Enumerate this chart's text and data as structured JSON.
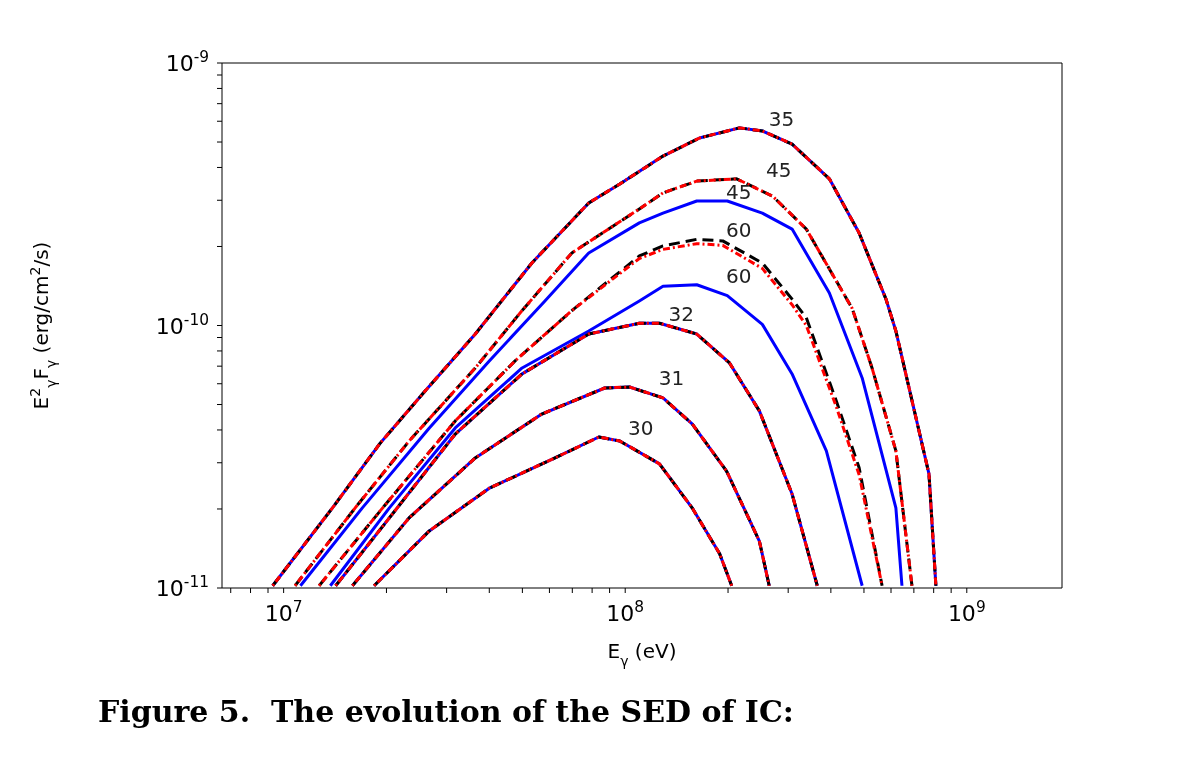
{
  "chart_data": {
    "type": "line",
    "xlabel": "E$_{γ}$ (eV)",
    "ylabel": "E$^{2}$$_{γ}$F$_{γ}$ (erg/cm$^{2}$/s)",
    "log": "xy",
    "xlim": [
      6600000.0,
      1900000000.0
    ],
    "xticks": [
      {
        "value": 7000000.0,
        "label": null
      },
      {
        "value": 8000000.0,
        "label": null
      },
      {
        "value": 9000000.0,
        "label": null
      },
      {
        "value": 10000000.0,
        "label": "10$^{7}$"
      },
      {
        "value": 20000000.0,
        "label": null
      },
      {
        "value": 30000000.0,
        "label": null
      },
      {
        "value": 40000000.0,
        "label": null
      },
      {
        "value": 50000000.0,
        "label": null
      },
      {
        "value": 60000000.0,
        "label": null
      },
      {
        "value": 70000000.0,
        "label": null
      },
      {
        "value": 80000000.0,
        "label": null
      },
      {
        "value": 90000000.0,
        "label": null
      },
      {
        "value": 100000000.0,
        "label": "10$^{8}$"
      },
      {
        "value": 200000000.0,
        "label": null
      },
      {
        "value": 300000000.0,
        "label": null
      },
      {
        "value": 400000000.0,
        "label": null
      },
      {
        "value": 500000000.0,
        "label": null
      },
      {
        "value": 600000000.0,
        "label": null
      },
      {
        "value": 700000000.0,
        "label": null
      },
      {
        "value": 800000000.0,
        "label": null
      },
      {
        "value": 900000000.0,
        "label": null
      },
      {
        "value": 1000000000.0,
        "label": "10$^{9}$"
      }
    ],
    "ylim": [
      1e-11,
      1e-09
    ],
    "yticks": [
      {
        "value": 1e-11,
        "label": "10$^{-11}$"
      },
      {
        "value": 2e-11,
        "label": null
      },
      {
        "value": 3e-11,
        "label": null
      },
      {
        "value": 4e-11,
        "label": null
      },
      {
        "value": 5e-11,
        "label": null
      },
      {
        "value": 6e-11,
        "label": null
      },
      {
        "value": 7e-11,
        "label": null
      },
      {
        "value": 8e-11,
        "label": null
      },
      {
        "value": 9e-11,
        "label": null
      },
      {
        "value": 1e-10,
        "label": "10$^{-10}$"
      },
      {
        "value": 2e-10,
        "label": null
      },
      {
        "value": 3e-10,
        "label": null
      },
      {
        "value": 4e-10,
        "label": null
      },
      {
        "value": 5e-10,
        "label": null
      },
      {
        "value": 6e-10,
        "label": null
      },
      {
        "value": 7e-10,
        "label": null
      },
      {
        "value": 8e-10,
        "label": null
      },
      {
        "value": 9e-10,
        "label": null
      },
      {
        "value": 1e-09,
        "label": "10$^{-9}$"
      }
    ],
    "series": [
      {
        "color": "#0000ff",
        "line_style": "solid",
        "x": [
          9290000.0,
          13900000.0,
          19100000.0,
          25500000.0,
          36400000.0,
          53300000.0,
          78200000.0,
          96400000.0,
          129000000.0,
          165000000.0,
          216000000.0,
          252000000.0,
          308000000.0,
          396000000.0,
          484000000.0,
          580000000.0,
          620000000.0,
          775000000.0,
          812000000.0
        ],
        "values": [
          1.02e-11,
          2.02e-11,
          3.54e-11,
          5.48e-11,
          9.28e-11,
          1.73e-10,
          2.93e-10,
          3.46e-10,
          4.42e-10,
          5.18e-10,
          5.66e-10,
          5.51e-10,
          4.91e-10,
          3.62e-10,
          2.25e-10,
          1.26e-10,
          9.53e-11,
          2.72e-11,
          1.02e-11
        ]
      },
      {
        "name": "45",
        "color": "#0000ff",
        "line_style": "solid",
        "x": [
          11200000.0,
          17000000.0,
          26700000.0,
          40000000.0,
          58200000.0,
          78200000.0,
          110000000.0,
          129000000.0,
          162000000.0,
          199000000.0,
          252000000.0,
          308000000.0,
          396000000.0,
          494000000.0,
          620000000.0,
          646000000.0
        ],
        "values": [
          1.02e-11,
          2.02e-11,
          4.07e-11,
          7.33e-11,
          1.24e-10,
          1.89e-10,
          2.46e-10,
          2.68e-10,
          2.98e-10,
          2.98e-10,
          2.68e-10,
          2.33e-10,
          1.33e-10,
          6.31e-11,
          2.02e-11,
          1.02e-11
        ]
      },
      {
        "name": "60",
        "color": "#0000ff",
        "line_style": "solid",
        "x": [
          13700000.0,
          20400000.0,
          31800000.0,
          49900000.0,
          78200000.0,
          110000000.0,
          129000000.0,
          162000000.0,
          199000000.0,
          252000000.0,
          308000000.0,
          388000000.0,
          494000000.0
        ],
        "values": [
          1.02e-11,
          2.02e-11,
          4.07e-11,
          6.89e-11,
          9.53e-11,
          1.24e-10,
          1.41e-10,
          1.43e-10,
          1.3e-10,
          1.01e-10,
          6.54e-11,
          3.33e-11,
          1.02e-11
        ]
      },
      {
        "color": "#0000ff",
        "line_style": "solid",
        "x": [
          14200000.0,
          20400000.0,
          31800000.0,
          49900000.0,
          78200000.0,
          110000000.0,
          126000000.0,
          162000000.0,
          202000000.0,
          247000000.0,
          308000000.0,
          365000000.0
        ],
        "values": [
          1.02e-11,
          1.85e-11,
          3.86e-11,
          6.54e-11,
          9.28e-11,
          1.02e-10,
          1.02e-10,
          9.28e-11,
          7.2e-11,
          4.73e-11,
          2.28e-11,
          1.02e-11
        ]
      },
      {
        "color": "#0000ff",
        "line_style": "solid",
        "x": [
          15900000.0,
          23300000.0,
          36400000.0,
          57000000.0,
          87100000.0,
          103000000.0,
          129000000.0,
          157000000.0,
          198000000.0,
          247000000.0,
          264000000.0
        ],
        "values": [
          1.02e-11,
          1.85e-11,
          3.13e-11,
          4.6e-11,
          5.78e-11,
          5.83e-11,
          5.3e-11,
          4.22e-11,
          2.79e-11,
          1.51e-11,
          1.02e-11
        ]
      },
      {
        "color": "#0000ff",
        "line_style": "solid",
        "x": [
          18400000.0,
          26700000.0,
          40000000.0,
          62300000.0,
          83700000.0,
          96400000.0,
          126000000.0,
          157000000.0,
          189000000.0,
          205000000.0
        ],
        "values": [
          1.02e-11,
          1.65e-11,
          2.4e-11,
          3.13e-11,
          3.76e-11,
          3.63e-11,
          2.97e-11,
          2.02e-11,
          1.35e-11,
          1.02e-11
        ]
      },
      {
        "name": "35",
        "color": "#000000",
        "line_style": "dashed",
        "x": [
          9290000.0,
          13900000.0,
          19100000.0,
          25500000.0,
          36400000.0,
          53300000.0,
          78200000.0,
          96400000.0,
          129000000.0,
          165000000.0,
          216000000.0,
          252000000.0,
          308000000.0,
          396000000.0,
          484000000.0,
          580000000.0,
          620000000.0,
          775000000.0,
          812000000.0
        ],
        "values": [
          1.02e-11,
          2.02e-11,
          3.54e-11,
          5.48e-11,
          9.28e-11,
          1.73e-10,
          2.93e-10,
          3.46e-10,
          4.42e-10,
          5.18e-10,
          5.66e-10,
          5.51e-10,
          4.91e-10,
          3.62e-10,
          2.25e-10,
          1.26e-10,
          9.53e-11,
          2.72e-11,
          1.02e-11
        ]
      },
      {
        "name": "45",
        "color": "#000000",
        "line_style": "dashed",
        "x": [
          10800000.0,
          16200000.0,
          23300000.0,
          36400000.0,
          49900000.0,
          69800000.0,
          110000000.0,
          129000000.0,
          162000000.0,
          212000000.0,
          270000000.0,
          339000000.0,
          462000000.0,
          528000000.0,
          620000000.0,
          691000000.0
        ],
        "values": [
          1.02e-11,
          2.02e-11,
          3.63e-11,
          6.89e-11,
          1.14e-10,
          1.89e-10,
          2.78e-10,
          3.2e-10,
          3.55e-10,
          3.62e-10,
          3.11e-10,
          2.33e-10,
          1.16e-10,
          6.89e-11,
          3.33e-11,
          1.02e-11
        ]
      },
      {
        "name": "60",
        "color": "#000000",
        "line_style": "dashed",
        "x": [
          12700000.0,
          19500000.0,
          31800000.0,
          47600000.0,
          69800000.0,
          110000000.0,
          129000000.0,
          162000000.0,
          193000000.0,
          252000000.0,
          308000000.0,
          339000000.0,
          415000000.0,
          484000000.0,
          565000000.0
        ],
        "values": [
          1.02e-11,
          2.02e-11,
          4.33e-11,
          7.33e-11,
          1.14e-10,
          1.84e-10,
          2.01e-10,
          2.13e-10,
          2.1e-10,
          1.73e-10,
          1.26e-10,
          1.07e-10,
          5.16e-11,
          2.87e-11,
          1.02e-11
        ]
      },
      {
        "name": "32",
        "color": "#000000",
        "line_style": "dashed",
        "x": [
          14200000.0,
          20400000.0,
          31800000.0,
          49900000.0,
          78200000.0,
          110000000.0,
          126000000.0,
          162000000.0,
          202000000.0,
          247000000.0,
          308000000.0,
          365000000.0
        ],
        "values": [
          1.02e-11,
          1.85e-11,
          3.86e-11,
          6.54e-11,
          9.28e-11,
          1.02e-10,
          1.02e-10,
          9.28e-11,
          7.2e-11,
          4.73e-11,
          2.28e-11,
          1.02e-11
        ]
      },
      {
        "name": "31",
        "color": "#000000",
        "line_style": "dashed",
        "x": [
          15900000.0,
          23300000.0,
          36400000.0,
          57000000.0,
          87100000.0,
          103000000.0,
          129000000.0,
          157000000.0,
          198000000.0,
          247000000.0,
          264000000.0
        ],
        "values": [
          1.02e-11,
          1.85e-11,
          3.13e-11,
          4.6e-11,
          5.78e-11,
          5.83e-11,
          5.3e-11,
          4.22e-11,
          2.79e-11,
          1.51e-11,
          1.02e-11
        ]
      },
      {
        "name": "30",
        "color": "#000000",
        "line_style": "dashed",
        "x": [
          18400000.0,
          26700000.0,
          40000000.0,
          62300000.0,
          83700000.0,
          96400000.0,
          126000000.0,
          157000000.0,
          189000000.0,
          205000000.0
        ],
        "values": [
          1.02e-11,
          1.65e-11,
          2.4e-11,
          3.13e-11,
          3.76e-11,
          3.63e-11,
          2.97e-11,
          2.02e-11,
          1.35e-11,
          1.02e-11
        ]
      },
      {
        "color": "#ff0000",
        "line_style": "dotted",
        "x": [
          9290000.0,
          13900000.0,
          19100000.0,
          25500000.0,
          36400000.0,
          53300000.0,
          78200000.0,
          96400000.0,
          129000000.0,
          165000000.0,
          216000000.0,
          252000000.0,
          308000000.0,
          396000000.0,
          484000000.0,
          580000000.0,
          620000000.0,
          775000000.0,
          812000000.0
        ],
        "values": [
          1.02e-11,
          2.02e-11,
          3.54e-11,
          5.48e-11,
          9.28e-11,
          1.73e-10,
          2.93e-10,
          3.46e-10,
          4.42e-10,
          5.18e-10,
          5.66e-10,
          5.51e-10,
          4.91e-10,
          3.62e-10,
          2.25e-10,
          1.26e-10,
          9.53e-11,
          2.72e-11,
          1.02e-11
        ]
      },
      {
        "color": "#ff0000",
        "line_style": "dotted",
        "x": [
          10800000.0,
          16200000.0,
          23300000.0,
          36400000.0,
          49900000.0,
          69800000.0,
          110000000.0,
          129000000.0,
          162000000.0,
          212000000.0,
          270000000.0,
          339000000.0,
          462000000.0,
          528000000.0,
          620000000.0,
          691000000.0
        ],
        "values": [
          1.02e-11,
          2.02e-11,
          3.63e-11,
          6.89e-11,
          1.14e-10,
          1.89e-10,
          2.78e-10,
          3.2e-10,
          3.55e-10,
          3.62e-10,
          3.11e-10,
          2.33e-10,
          1.16e-10,
          6.89e-11,
          3.33e-11,
          1.02e-11
        ]
      },
      {
        "color": "#ff0000",
        "line_style": "dotted",
        "x": [
          12700000.0,
          19500000.0,
          31800000.0,
          47600000.0,
          69800000.0,
          110000000.0,
          129000000.0,
          162000000.0,
          193000000.0,
          252000000.0,
          308000000.0,
          339000000.0,
          415000000.0,
          484000000.0,
          565000000.0
        ],
        "values": [
          1.02e-11,
          2.02e-11,
          4.33e-11,
          7.33e-11,
          1.14e-10,
          1.8e-10,
          1.95e-10,
          2.05e-10,
          2.02e-10,
          1.65e-10,
          1.2e-10,
          1e-10,
          4.9e-11,
          2.7e-11,
          1.02e-11
        ]
      },
      {
        "color": "#ff0000",
        "line_style": "dotted",
        "x": [
          14200000.0,
          20400000.0,
          31800000.0,
          49900000.0,
          78200000.0,
          110000000.0,
          126000000.0,
          162000000.0,
          202000000.0,
          247000000.0,
          308000000.0,
          365000000.0
        ],
        "values": [
          1.02e-11,
          1.85e-11,
          3.86e-11,
          6.54e-11,
          9.28e-11,
          1.02e-10,
          1.02e-10,
          9.28e-11,
          7.2e-11,
          4.73e-11,
          2.28e-11,
          1.02e-11
        ]
      },
      {
        "color": "#ff0000",
        "line_style": "dotted",
        "x": [
          15900000.0,
          23300000.0,
          36400000.0,
          57000000.0,
          87100000.0,
          103000000.0,
          129000000.0,
          157000000.0,
          198000000.0,
          247000000.0,
          264000000.0
        ],
        "values": [
          1.02e-11,
          1.85e-11,
          3.13e-11,
          4.6e-11,
          5.78e-11,
          5.83e-11,
          5.3e-11,
          4.22e-11,
          2.79e-11,
          1.51e-11,
          1.02e-11
        ]
      },
      {
        "color": "#ff0000",
        "line_style": "dotted",
        "x": [
          18400000.0,
          26700000.0,
          40000000.0,
          62300000.0,
          83700000.0,
          96400000.0,
          126000000.0,
          157000000.0,
          189000000.0,
          205000000.0
        ],
        "values": [
          1.02e-11,
          1.65e-11,
          2.4e-11,
          3.13e-11,
          3.76e-11,
          3.63e-11,
          2.97e-11,
          2.02e-11,
          1.35e-11,
          1.02e-11
        ]
      }
    ],
    "annotations": [
      "Figure 5.  The evolution of the SED of IC:"
    ]
  }
}
